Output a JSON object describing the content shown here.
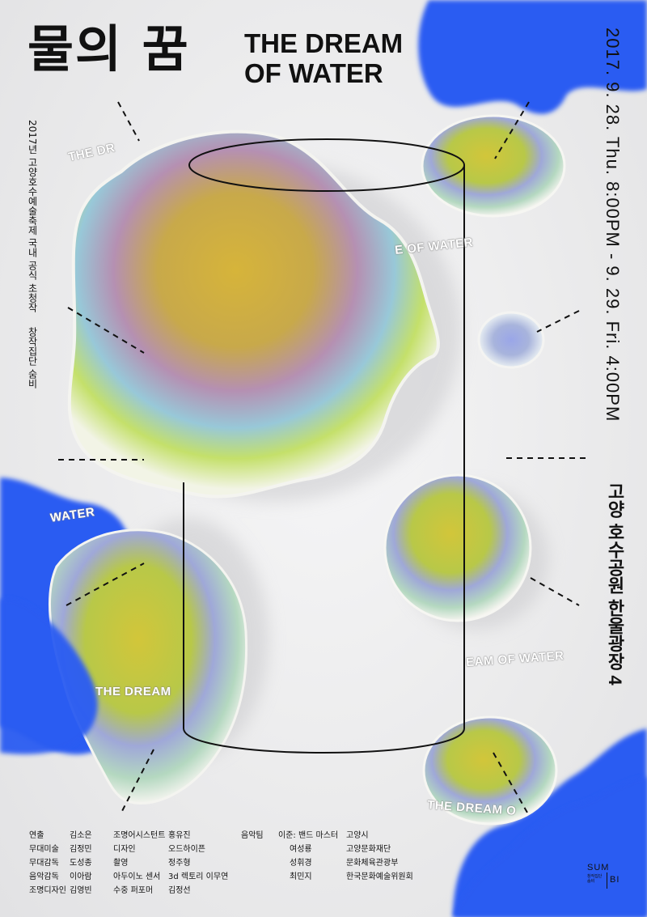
{
  "poster": {
    "title_ko": "물의 꿈",
    "title_en_line1": "THE DREAM",
    "title_en_line2": "OF WATER",
    "date": "2017. 9. 28. Thu. 8:00PM - 9. 29. Fri. 4:00PM",
    "venue": "고양 호수공원 한울광장 4",
    "subtitle_festival": "2017년 고양호수예술축제 국내 공식 초청작",
    "subtitle_company": "창작집단 숨비",
    "curved_text": {
      "t1": "THE DR",
      "t2": "E OF WATER",
      "t3": "WATER",
      "t4": "EAM OF WATER",
      "t5": "THE DREAM",
      "t6": "THE DREAM O"
    },
    "colors": {
      "blue": "#2a5cf2",
      "background": "#ececed",
      "text": "#111111"
    }
  },
  "credits": {
    "col1_roles": [
      "연출",
      "무대미술",
      "무대감독",
      "음악감독",
      "조명디자인"
    ],
    "col1_names": [
      "김소은",
      "김정민",
      "도성종",
      "이아람",
      "김영빈"
    ],
    "col2_roles": [
      "조명어시스턴트",
      "디자인",
      "촬영",
      "아두이노 센서",
      "수중 퍼포머"
    ],
    "col2_names": [
      "홍유진",
      "오드하이픈",
      "정주형",
      "3d 렉토리 이무연",
      "김정선"
    ],
    "col3_roles": [
      "음악팀"
    ],
    "col3_names": [
      "이준: 밴드 마스터",
      "여성룡",
      "성휘경",
      "최민지"
    ],
    "col4_orgs": [
      "고양시",
      "고양문화재단",
      "문화체육관광부",
      "한국문화예술위원회"
    ]
  },
  "logo": {
    "top": "SUM",
    "small": "창작집단 숨비",
    "bottom": "BI"
  }
}
